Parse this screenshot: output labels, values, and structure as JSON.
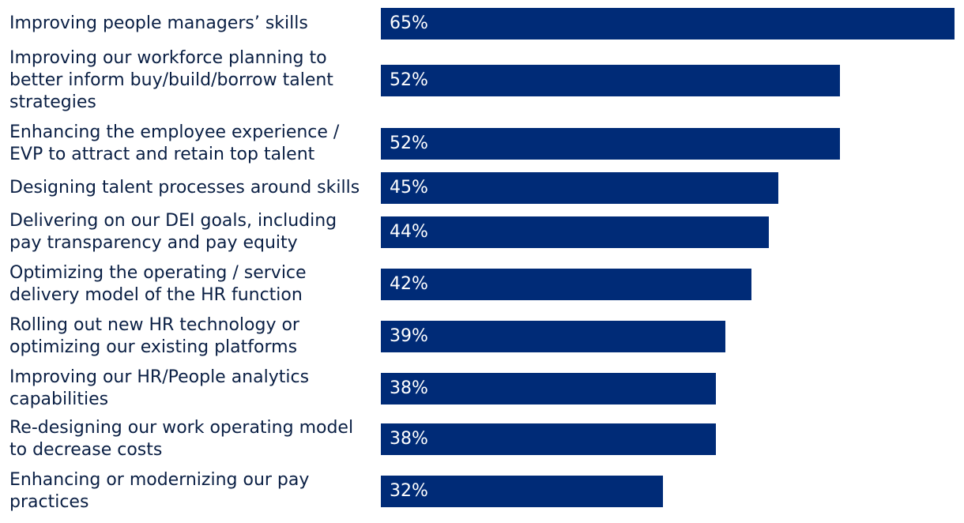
{
  "chart_data": {
    "type": "bar",
    "orientation": "horizontal",
    "categories": [
      "Improving people managers’ skills",
      "Improving our workforce planning to better inform buy/build/borrow talent strategies",
      "Enhancing the employee experience / EVP to attract and retain top talent",
      "Designing talent processes around skills",
      "Delivering on our DEI goals, including pay transparency and pay equity",
      "Optimizing the operating / service delivery model of the HR function",
      "Rolling out new HR technology or optimizing our existing platforms",
      "Improving our HR/People analytics capabilities",
      "Re-designing our work operating model to decrease costs",
      "Enhancing or modernizing our pay practices"
    ],
    "values": [
      65,
      52,
      52,
      45,
      44,
      42,
      39,
      38,
      38,
      32
    ],
    "value_labels": [
      "65%",
      "52%",
      "52%",
      "45%",
      "44%",
      "42%",
      "39%",
      "38%",
      "38%",
      "32%"
    ],
    "bar_color": "#002b77",
    "label_color": "#ffffff",
    "category_color": "#0a1f44",
    "xlim": [
      0,
      65
    ],
    "grid": false,
    "legend": "none"
  }
}
